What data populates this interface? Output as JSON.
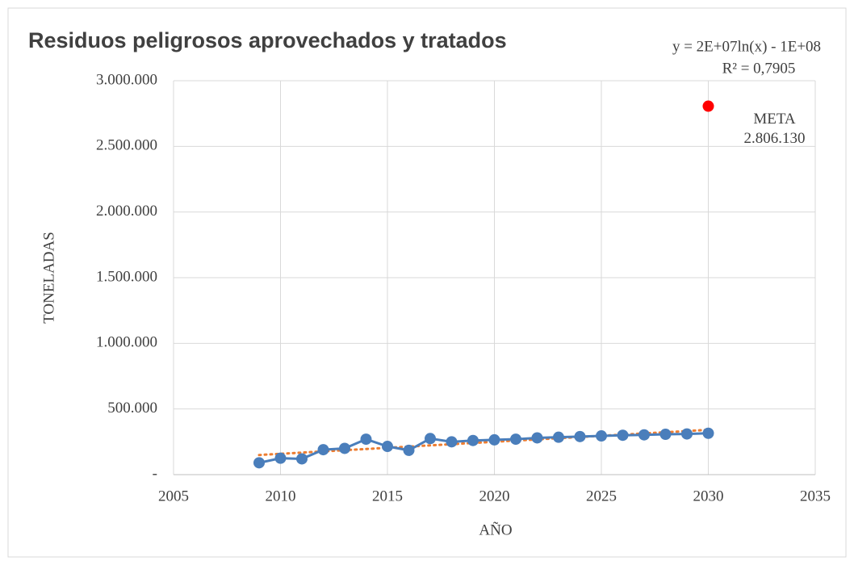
{
  "chart_data": {
    "type": "line",
    "title": "Residuos peligrosos aprovechados y tratados",
    "x_label": "AÑO",
    "y_label": "TONELADAS",
    "annotations": [
      "y = 2E+07ln(x) - 1E+08",
      "R² = 0,7905"
    ],
    "xlim": [
      2005,
      2035
    ],
    "xticks": [
      2005,
      2010,
      2015,
      2020,
      2025,
      2030,
      2035
    ],
    "ylim": [
      0,
      3000000
    ],
    "yticks": [
      {
        "value": 0,
        "label": "-"
      },
      {
        "value": 500000,
        "label": "500.000"
      },
      {
        "value": 1000000,
        "label": "1.000.000"
      },
      {
        "value": 1500000,
        "label": "1.500.000"
      },
      {
        "value": 2000000,
        "label": "2.000.000"
      },
      {
        "value": 2500000,
        "label": "2.500.000"
      },
      {
        "value": 3000000,
        "label": "3.000.000"
      }
    ],
    "grid": true,
    "trendline": {
      "kind": "logarithmic",
      "color": "#ed7d31"
    },
    "series": [
      {
        "color": "#4a7ebb",
        "x": [
          2009,
          2010,
          2011,
          2012,
          2013,
          2014,
          2015,
          2016,
          2017,
          2018,
          2019,
          2020,
          2021,
          2022,
          2023,
          2024,
          2025,
          2026,
          2027,
          2028,
          2029,
          2030
        ],
        "values": [
          90000,
          125000,
          120000,
          190000,
          200000,
          270000,
          215000,
          185000,
          275000,
          250000,
          260000,
          265000,
          270000,
          280000,
          285000,
          290000,
          295000,
          300000,
          303000,
          307000,
          310000,
          315000
        ]
      },
      {
        "name": "META",
        "type": "scatter",
        "color": "#ff0000",
        "x": [
          2030
        ],
        "values": [
          2806130
        ],
        "value_labels": [
          "2.806.130"
        ]
      }
    ]
  }
}
